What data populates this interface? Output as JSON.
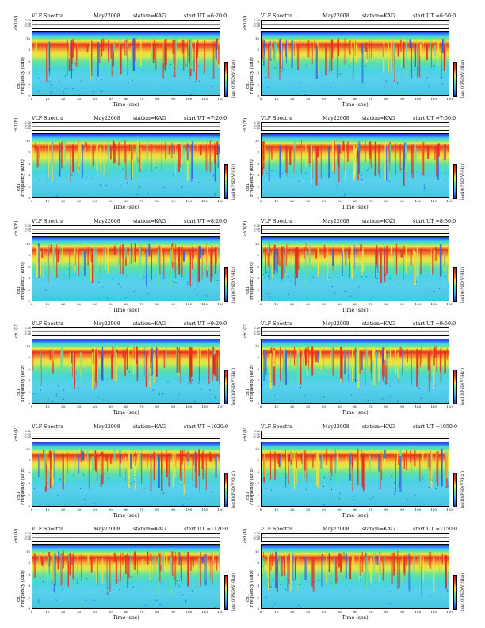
{
  "panels": [
    {
      "title": "VLF Spectra",
      "date": "May22008",
      "station": "station=KAG",
      "start_ut": "start UT =6:20:0"
    },
    {
      "title": "VLF Spectra",
      "date": "May22008",
      "station": "station=KAG",
      "start_ut": "start UT =6:50:0"
    },
    {
      "title": "VLF Spectra",
      "date": "May22008",
      "station": "station=KAG",
      "start_ut": "start UT =7:20:0"
    },
    {
      "title": "VLF Spectra",
      "date": "May22008",
      "station": "station=KAG",
      "start_ut": "start UT =7:50:0"
    },
    {
      "title": "VLF Spectra",
      "date": "May22008",
      "station": "station=KAG",
      "start_ut": "start UT =8:20:0"
    },
    {
      "title": "VLF Spectra",
      "date": "May22008",
      "station": "station=KAG",
      "start_ut": "start UT =8:50:0"
    },
    {
      "title": "VLF Spectra",
      "date": "May22008",
      "station": "station=KAG",
      "start_ut": "start UT =9:20:0"
    },
    {
      "title": "VLF Spectra",
      "date": "May22008",
      "station": "station=KAG",
      "start_ut": "start UT =9:50:0"
    },
    {
      "title": "VLF Spectra",
      "date": "May22008",
      "station": "station=KAG",
      "start_ut": "start UT =1020:0"
    },
    {
      "title": "VLF Spectra",
      "date": "May22008",
      "station": "station=KAG",
      "start_ut": "start UT =1050:0"
    },
    {
      "title": "VLF Spectra",
      "date": "May22008",
      "station": "station=KAG",
      "start_ut": "start UT =1120:0"
    },
    {
      "title": "VLF Spectra",
      "date": "May22008",
      "station": "station=KAG",
      "start_ut": "start UT =1150:0"
    }
  ],
  "labels": {
    "waveform_axis": "ch1(V)",
    "spec_axis_1": "ch1",
    "spec_axis_2": "Frequency (kHz)",
    "x_axis": "Time (sec)",
    "colorbar": "log10(PSD(V²/Hz))"
  },
  "chart_data": {
    "type": "heatmap",
    "panel_count": 12,
    "waveform_y_ticks": [
      "0.20",
      "0.00",
      "-0.20"
    ],
    "x_ticks": [
      "0",
      "10",
      "20",
      "30",
      "40",
      "50",
      "60",
      "70",
      "80",
      "90",
      "100",
      "110",
      "120"
    ],
    "xlim": [
      0,
      120
    ],
    "y_ticks": [
      "0",
      "2",
      "4",
      "6",
      "8",
      "10"
    ],
    "ylim": [
      0,
      10
    ],
    "xlabel": "Time (sec)",
    "ylabel": "Frequency (kHz)",
    "colorbar_label": "log10(PSD(V²/Hz))",
    "colormap": [
      "#1d2fb8",
      "#3fa8f0",
      "#56dc9c",
      "#f5e43c",
      "#f03a20",
      "#c41a1a"
    ]
  }
}
